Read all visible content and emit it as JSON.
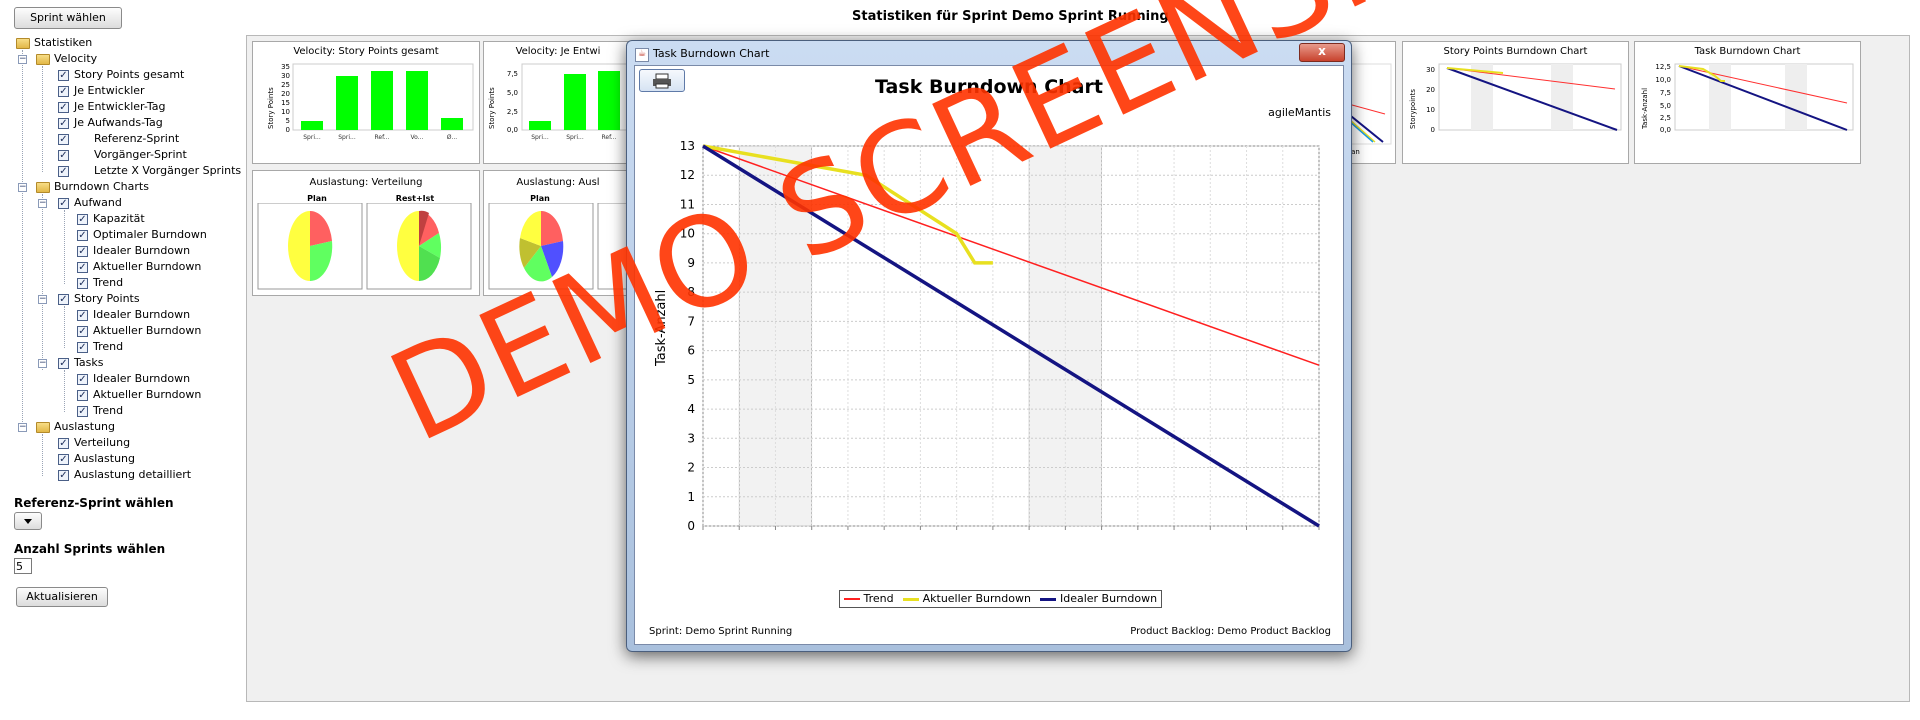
{
  "toolbar": {
    "sprint_button": "Sprint wählen"
  },
  "page_title": "Statistiken für Sprint Demo Sprint Running",
  "tree": {
    "root": "Statistiken",
    "velocity": {
      "label": "Velocity",
      "items": [
        "Story Points gesamt",
        "Je Entwickler",
        "Je Entwickler-Tag",
        "Je Aufwands-Tag"
      ],
      "sub": [
        "Referenz-Sprint",
        "Vorgänger-Sprint",
        "Letzte X Vorgänger Sprints"
      ]
    },
    "burndown": {
      "label": "Burndown Charts",
      "aufwand": {
        "label": "Aufwand",
        "items": [
          "Kapazität",
          "Optimaler Burndown",
          "Idealer Burndown",
          "Aktueller Burndown",
          "Trend"
        ]
      },
      "story_points": {
        "label": "Story Points",
        "items": [
          "Idealer Burndown",
          "Aktueller Burndown",
          "Trend"
        ]
      },
      "tasks": {
        "label": "Tasks",
        "items": [
          "Idealer Burndown",
          "Aktueller Burndown",
          "Trend"
        ]
      }
    },
    "auslastung": {
      "label": "Auslastung",
      "items": [
        "Verteilung",
        "Auslastung",
        "Auslastung detailliert"
      ]
    }
  },
  "controls": {
    "ref_sprint_label": "Referenz-Sprint wählen",
    "num_sprints_label": "Anzahl Sprints wählen",
    "num_sprints_value": "5",
    "refresh_button": "Aktualisieren"
  },
  "panels": {
    "velocity_total": {
      "title": "Velocity: Story Points gesamt",
      "ylabel": "Story Points",
      "yticks": [
        "35",
        "30",
        "25",
        "20",
        "15",
        "10",
        "5",
        "0"
      ],
      "xticks": [
        "Spri...",
        "Spri...",
        "Ref...",
        "Vo...",
        "Ø..."
      ]
    },
    "velocity_dev": {
      "title": "Velocity: Je Entwi",
      "ylabel": "Story Points",
      "yticks": [
        "7,5",
        "5,0",
        "2,5",
        "0,0"
      ],
      "xticks": [
        "Spri...",
        "Spri...",
        "Ref..."
      ]
    },
    "story_burndown": {
      "title": "Story Points Burndown Chart",
      "ylabel": "Storypoints",
      "yticks": [
        "30",
        "20",
        "10",
        "0"
      ]
    },
    "task_burndown_small": {
      "title": "Task Burndown Chart",
      "ylabel": "Task-Anzahl",
      "yticks": [
        "12,5",
        "10,0",
        "7,5",
        "5,0",
        "2,5",
        "0,0"
      ]
    },
    "auslastung_verteilung": {
      "title": "Auslastung: Verteilung",
      "pie1": "Plan",
      "pie2": "Rest+Ist"
    },
    "auslastung_2": {
      "title": "Auslastung: Ausl",
      "pie1": "Plan"
    },
    "partial_label": "Jan"
  },
  "dialog": {
    "window_title": "Task Burndown Chart",
    "close_label": "x",
    "print_icon": "printer-icon",
    "chart_title": "Task Burndown Chart",
    "brand": "agileMantis",
    "footer_left": "Sprint: Demo Sprint Running",
    "footer_right": "Product Backlog: Demo Product Backlog"
  },
  "chart_data": {
    "type": "line",
    "title": "Task Burndown Chart",
    "xlabel": "",
    "ylabel": "Task-Anzahl",
    "ylim": [
      0,
      13
    ],
    "yticks": [
      0,
      1,
      2,
      3,
      4,
      5,
      6,
      7,
      8,
      9,
      10,
      11,
      12,
      13
    ],
    "x": [
      0,
      1,
      2,
      3,
      4,
      5,
      6,
      7,
      8,
      9,
      10,
      11,
      12,
      13,
      14,
      15,
      16,
      17
    ],
    "shaded_ranges": [
      [
        1,
        3
      ],
      [
        9,
        11
      ]
    ],
    "grid": true,
    "legend_position": "bottom",
    "series": [
      {
        "name": "Trend",
        "color": "#ff2020",
        "x": [
          0,
          17
        ],
        "y": [
          13,
          5.5
        ]
      },
      {
        "name": "Aktueller Burndown",
        "color": "#e8e020",
        "x": [
          0,
          4.5,
          7,
          7.5,
          8
        ],
        "y": [
          13,
          12,
          10,
          9,
          9
        ]
      },
      {
        "name": "Idealer Burndown",
        "color": "#141482",
        "x": [
          0,
          17
        ],
        "y": [
          13,
          0
        ]
      }
    ]
  },
  "watermark": "DEMO SCREENSHOT",
  "colors": {
    "accent_green": "#00ff00",
    "panel_bg": "#f0f0f0",
    "watermark": "#ff3300"
  }
}
